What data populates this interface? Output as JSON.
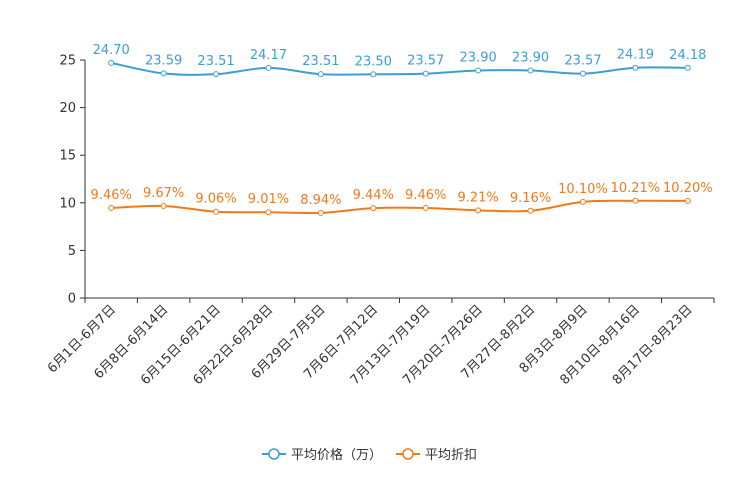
{
  "chart_data": {
    "type": "line",
    "title": "",
    "xlabel": "",
    "ylabel": "",
    "ylim": [
      0,
      25
    ],
    "yticks": [
      0,
      5,
      10,
      15,
      20,
      25
    ],
    "grid": false,
    "legend_position": "bottom-center",
    "categories": [
      "6月1日-6月7日",
      "6月8日-6月14日",
      "6月15日-6月21日",
      "6月22日-6月28日",
      "6月29日-7月5日",
      "7月6日-7月12日",
      "7月13日-7月19日",
      "7月20日-7月26日",
      "7月27日-8月2日",
      "8月3日-8月9日",
      "8月10日-8月16日",
      "8月17日-8月23日"
    ],
    "series": [
      {
        "name": "平均价格（万）",
        "color": "#3c9fd4",
        "values": [
          24.7,
          23.59,
          23.51,
          24.17,
          23.51,
          23.5,
          23.57,
          23.9,
          23.9,
          23.57,
          24.19,
          24.18
        ],
        "labels": [
          "24.70",
          "23.59",
          "23.51",
          "24.17",
          "23.51",
          "23.50",
          "23.57",
          "23.90",
          "23.90",
          "23.57",
          "24.19",
          "24.18"
        ]
      },
      {
        "name": "平均折扣",
        "color": "#f07a1a",
        "values": [
          9.46,
          9.67,
          9.06,
          9.01,
          8.94,
          9.44,
          9.46,
          9.21,
          9.16,
          10.1,
          10.21,
          10.2
        ],
        "labels": [
          "9.46%",
          "9.67%",
          "9.06%",
          "9.01%",
          "8.94%",
          "9.44%",
          "9.46%",
          "9.21%",
          "9.16%",
          "10.10%",
          "10.21%",
          "10.20%"
        ]
      }
    ]
  }
}
